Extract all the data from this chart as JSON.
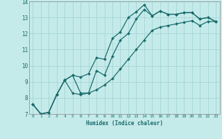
{
  "xlabel": "Humidex (Indice chaleur)",
  "bg_color": "#c5eaea",
  "grid_color": "#a8d8d8",
  "line_color": "#1a6b6b",
  "marker": "D",
  "markersize": 2.0,
  "linewidth": 0.9,
  "xlim": [
    -0.5,
    23.5
  ],
  "ylim": [
    7,
    14
  ],
  "xticks": [
    0,
    1,
    2,
    3,
    4,
    5,
    6,
    7,
    8,
    9,
    10,
    11,
    12,
    13,
    14,
    15,
    16,
    17,
    18,
    19,
    20,
    21,
    22,
    23
  ],
  "yticks": [
    7,
    8,
    9,
    10,
    11,
    12,
    13,
    14
  ],
  "series": [
    [
      7.6,
      7.0,
      7.1,
      8.2,
      9.1,
      9.4,
      9.3,
      9.5,
      10.5,
      10.4,
      11.7,
      12.1,
      13.0,
      13.35,
      13.8,
      13.1,
      13.4,
      13.2,
      13.2,
      13.3,
      13.3,
      12.9,
      13.0,
      12.75
    ],
    [
      7.6,
      7.0,
      7.1,
      8.2,
      9.1,
      9.4,
      8.3,
      8.3,
      9.7,
      9.4,
      10.6,
      11.6,
      12.0,
      12.9,
      13.5,
      13.1,
      13.4,
      13.2,
      13.2,
      13.3,
      13.3,
      12.9,
      13.0,
      12.75
    ],
    [
      7.6,
      7.0,
      7.1,
      8.2,
      9.1,
      8.3,
      8.2,
      8.3,
      8.5,
      8.8,
      9.2,
      9.8,
      10.4,
      11.0,
      11.6,
      12.2,
      12.4,
      12.5,
      12.6,
      12.7,
      12.8,
      12.5,
      12.75,
      12.75
    ]
  ]
}
